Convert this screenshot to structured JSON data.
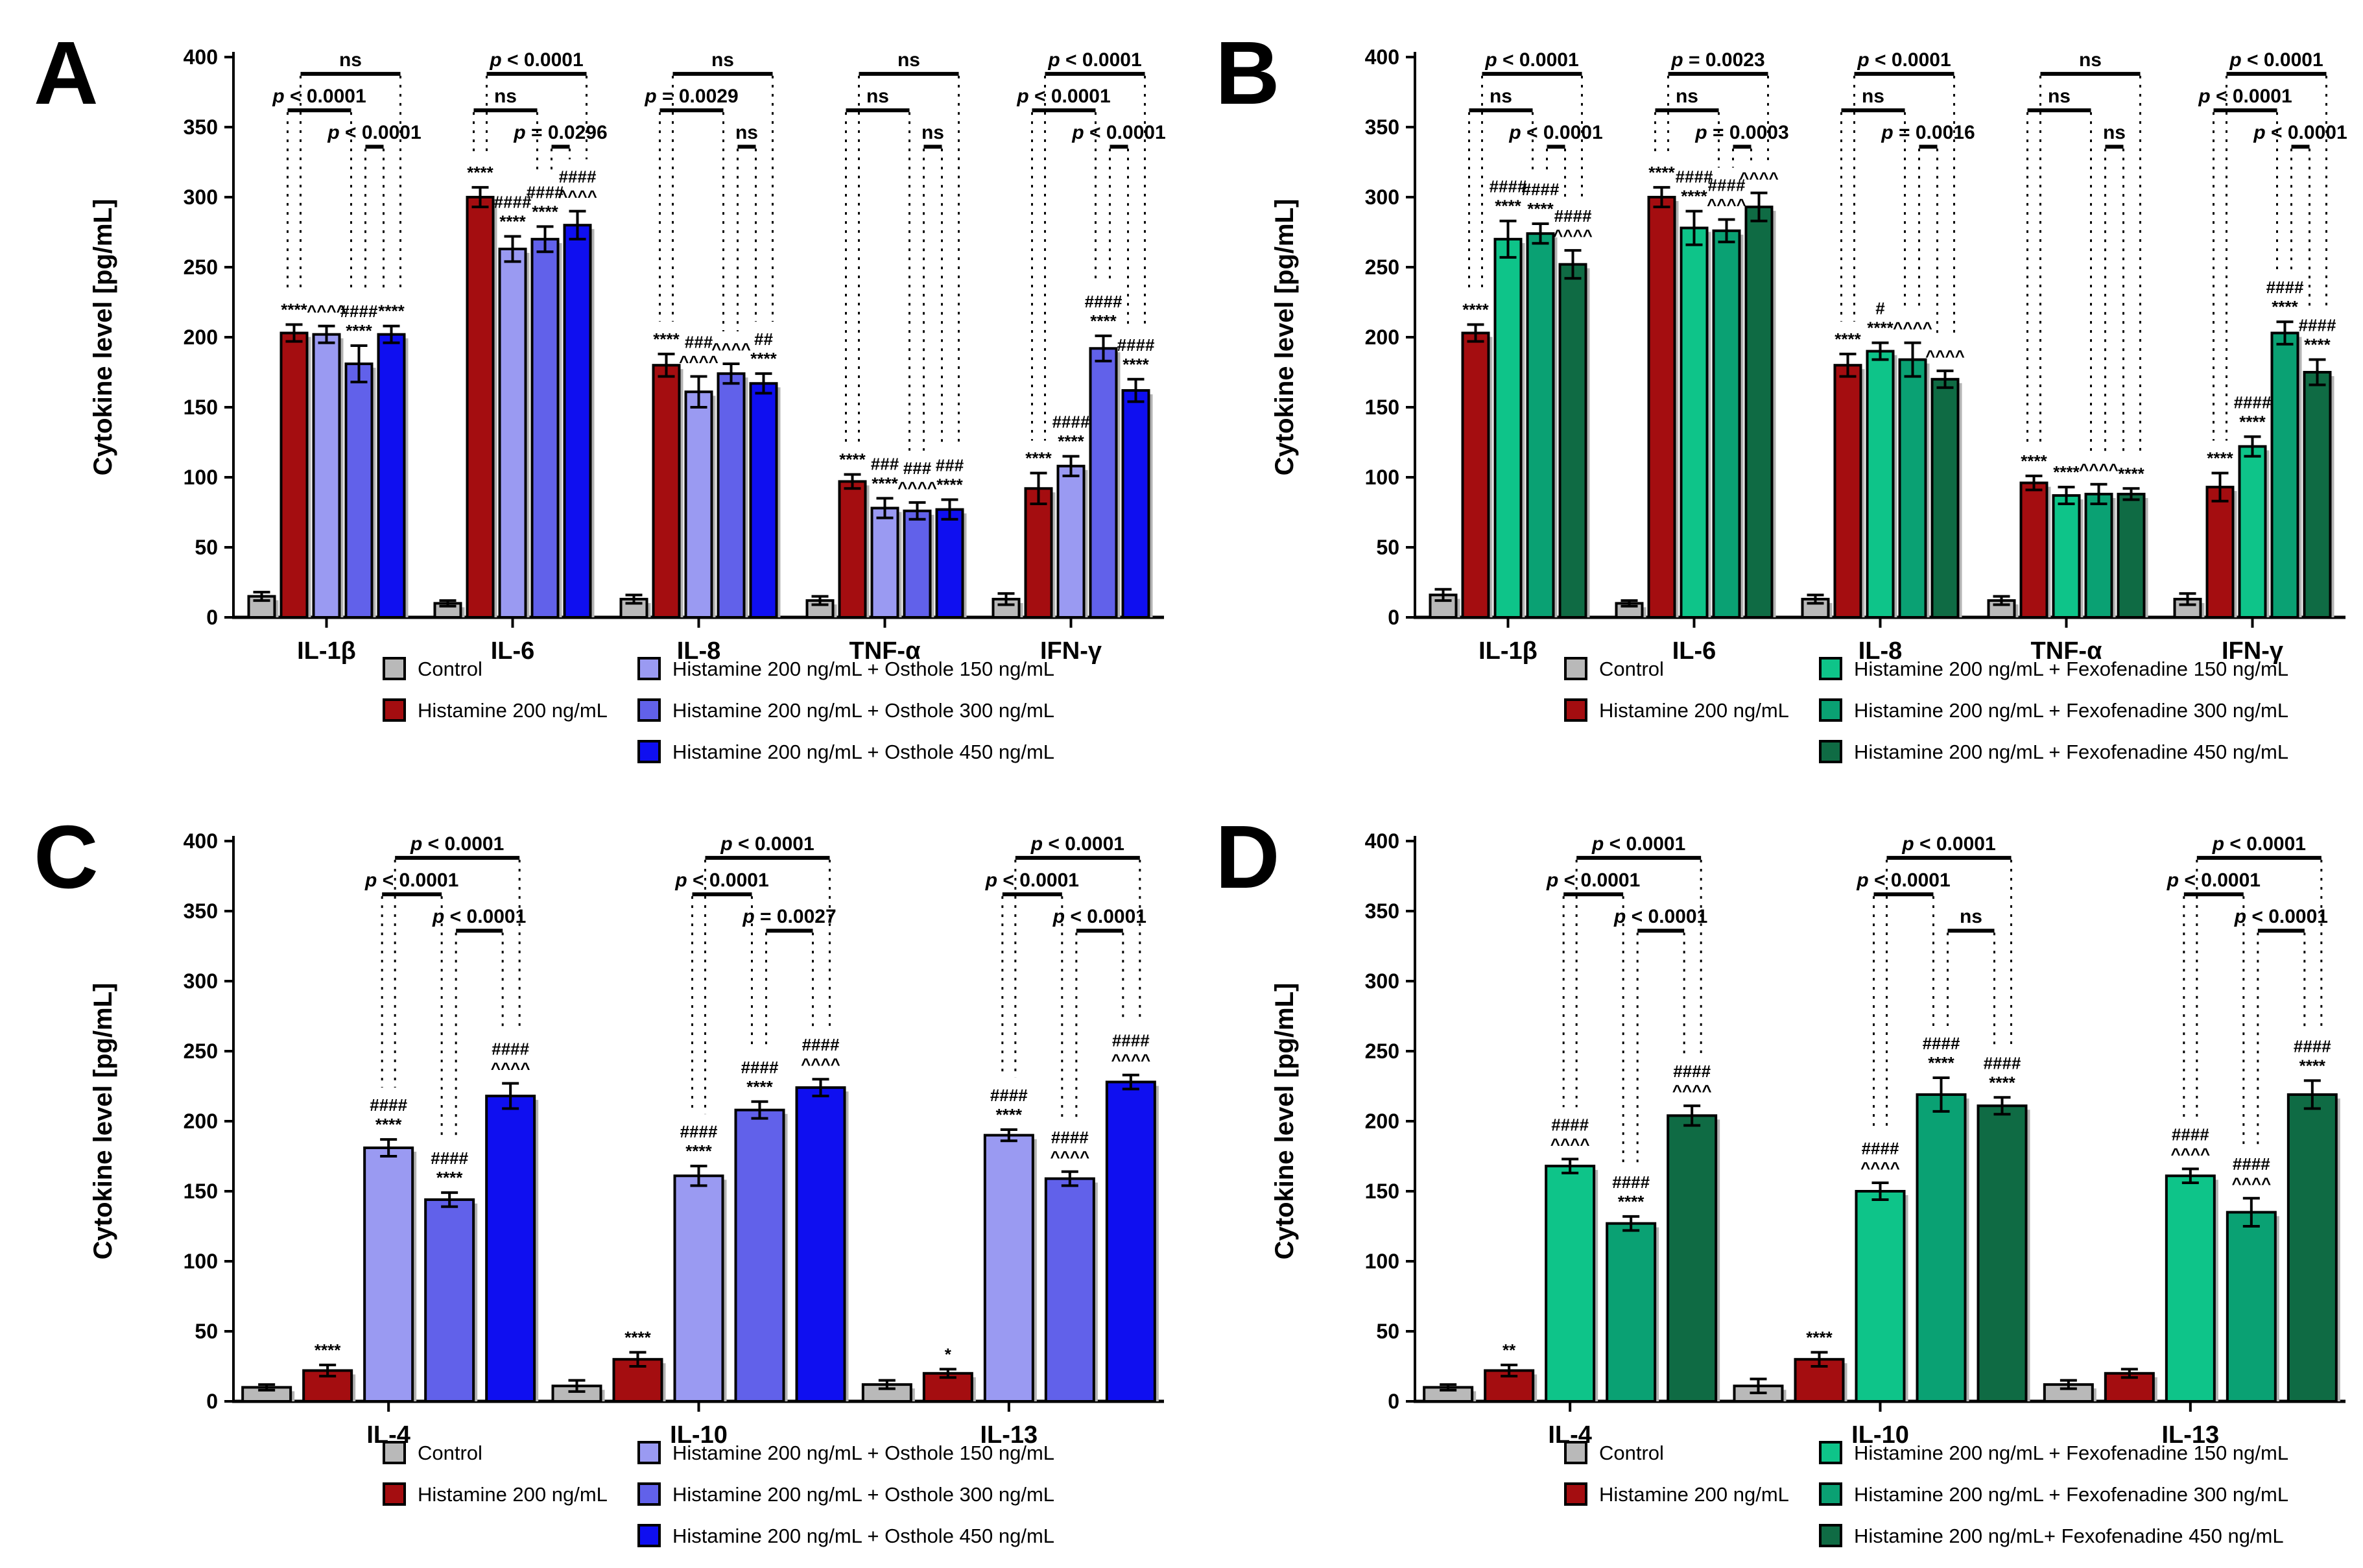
{
  "figure": {
    "description": "Four-panel bar figure of cytokine levels",
    "colors": {
      "control": "#b9b9b9",
      "histamine": "#a40d10",
      "osthole150": "#9a9af2",
      "osthole300": "#6161ea",
      "osthole450": "#0f0ff0",
      "fexofenadine150": "#0ec489",
      "fexofenadine300": "#0aa173",
      "fexofenadine450": "#0f6b44"
    }
  },
  "chart_data": [
    {
      "panel": "A",
      "type": "bar",
      "ylabel": "Cytokine level [pg/mL]",
      "ylim": [
        0,
        400
      ],
      "ytick_step": 50,
      "categories": [
        "IL-1β",
        "IL-6",
        "IL-8",
        "TNF-α",
        "IFN-γ"
      ],
      "series": [
        {
          "name": "Control",
          "color": "#b9b9b9",
          "values": [
            15,
            10,
            13,
            12,
            13
          ],
          "errors": [
            3,
            2,
            3,
            3,
            4
          ]
        },
        {
          "name": "Histamine 200 ng/mL",
          "color": "#a40d10",
          "values": [
            203,
            300,
            180,
            97,
            92
          ],
          "errors": [
            6,
            7,
            8,
            5,
            11
          ]
        },
        {
          "name": "Histamine 200 ng/mL + Osthole 150 ng/mL",
          "color": "#9a9af2",
          "values": [
            202,
            263,
            161,
            78,
            108
          ],
          "errors": [
            6,
            9,
            11,
            7,
            7
          ]
        },
        {
          "name": "Histamine 200 ng/mL + Osthole 300 ng/mL",
          "color": "#6161ea",
          "values": [
            181,
            270,
            174,
            76,
            192
          ],
          "errors": [
            13,
            9,
            7,
            6,
            9
          ]
        },
        {
          "name": "Histamine 200 ng/mL + Osthole 450 ng/mL",
          "color": "#0f0ff0",
          "values": [
            202,
            280,
            167,
            77,
            162
          ],
          "errors": [
            6,
            10,
            7,
            7,
            8
          ]
        }
      ],
      "annotations": [
        [
          "",
          "****",
          "^^^^",
          "####\n****",
          "****"
        ],
        [
          "",
          "****",
          "####\n****",
          "####\n****",
          "####\n^^^^"
        ],
        [
          "",
          "****",
          "###\n^^^^",
          "^^^^",
          "##\n****"
        ],
        [
          "",
          "****",
          "###\n****",
          "###\n^^^^",
          "###\n****"
        ],
        [
          "",
          "****",
          "####\n****",
          "####\n****",
          "####\n****"
        ]
      ],
      "comparisons": [
        {
          "category": "IL-1β",
          "brackets": [
            {
              "level": "top",
              "pair": [
                1,
                4
              ],
              "label": "ns"
            },
            {
              "level": "mid",
              "pair": [
                1,
                3
              ],
              "label": "p < 0.0001"
            },
            {
              "level": "low",
              "pair": [
                3,
                4
              ],
              "label": "p < 0.0001"
            }
          ]
        },
        {
          "category": "IL-6",
          "brackets": [
            {
              "level": "top",
              "pair": [
                1,
                4
              ],
              "label": "p < 0.0001"
            },
            {
              "level": "mid",
              "pair": [
                1,
                3
              ],
              "label": "ns"
            },
            {
              "level": "low",
              "pair": [
                3,
                4
              ],
              "label": "p = 0.0296"
            }
          ]
        },
        {
          "category": "IL-8",
          "brackets": [
            {
              "level": "top",
              "pair": [
                1,
                4
              ],
              "label": "ns"
            },
            {
              "level": "mid",
              "pair": [
                1,
                3
              ],
              "label": "p = 0.0029"
            },
            {
              "level": "low",
              "pair": [
                3,
                4
              ],
              "label": "ns"
            }
          ]
        },
        {
          "category": "TNF-α",
          "brackets": [
            {
              "level": "top",
              "pair": [
                1,
                4
              ],
              "label": "ns"
            },
            {
              "level": "mid",
              "pair": [
                1,
                3
              ],
              "label": "ns"
            },
            {
              "level": "low",
              "pair": [
                3,
                4
              ],
              "label": "ns"
            }
          ]
        },
        {
          "category": "IFN-γ",
          "brackets": [
            {
              "level": "top",
              "pair": [
                1,
                4
              ],
              "label": "p < 0.0001"
            },
            {
              "level": "mid",
              "pair": [
                1,
                3
              ],
              "label": "p < 0.0001"
            },
            {
              "level": "low",
              "pair": [
                3,
                4
              ],
              "label": "p < 0.0001"
            }
          ]
        }
      ],
      "legend": {
        "column1": [
          0,
          1
        ],
        "column2": [
          2,
          3,
          4
        ]
      }
    },
    {
      "panel": "B",
      "type": "bar",
      "ylabel": "Cytokine level [pg/mL]",
      "ylim": [
        0,
        400
      ],
      "ytick_step": 50,
      "categories": [
        "IL-1β",
        "IL-6",
        "IL-8",
        "TNF-α",
        "IFN-γ"
      ],
      "series": [
        {
          "name": "Control",
          "color": "#b9b9b9",
          "values": [
            16,
            10,
            13,
            12,
            13
          ],
          "errors": [
            4,
            2,
            3,
            3,
            4
          ]
        },
        {
          "name": "Histamine 200 ng/mL",
          "color": "#a40d10",
          "values": [
            203,
            300,
            180,
            96,
            93
          ],
          "errors": [
            6,
            7,
            8,
            5,
            10
          ]
        },
        {
          "name": "Histamine 200 ng/mL + Fexofenadine 150 ng/mL",
          "color": "#0ec489",
          "values": [
            270,
            278,
            190,
            87,
            122
          ],
          "errors": [
            13,
            12,
            6,
            6,
            7
          ]
        },
        {
          "name": "Histamine 200 ng/mL + Fexofenadine 300 ng/mL",
          "color": "#0aa173",
          "values": [
            274,
            276,
            184,
            88,
            203
          ],
          "errors": [
            7,
            8,
            12,
            7,
            8
          ]
        },
        {
          "name": "Histamine 200 ng/mL + Fexofenadine 450 ng/mL",
          "color": "#0f6b44",
          "values": [
            252,
            293,
            170,
            88,
            175
          ],
          "errors": [
            10,
            10,
            6,
            4,
            9
          ]
        }
      ],
      "annotations": [
        [
          "",
          "****",
          "####\n****",
          "####\n****",
          "####\n^^^^"
        ],
        [
          "",
          "****",
          "####\n****",
          "####\n^^^^",
          "^^^^"
        ],
        [
          "",
          "****",
          "#\n****",
          "^^^^",
          "^^^^"
        ],
        [
          "",
          "****",
          "****",
          "^^^^",
          "****"
        ],
        [
          "",
          "****",
          "####\n****",
          "####\n****",
          "####\n****"
        ]
      ],
      "comparisons": [
        {
          "category": "IL-1β",
          "brackets": [
            {
              "level": "top",
              "pair": [
                1,
                4
              ],
              "label": "p < 0.0001"
            },
            {
              "level": "mid",
              "pair": [
                1,
                3
              ],
              "label": "ns"
            },
            {
              "level": "low",
              "pair": [
                3,
                4
              ],
              "label": "p < 0.0001"
            }
          ]
        },
        {
          "category": "IL-6",
          "brackets": [
            {
              "level": "top",
              "pair": [
                1,
                4
              ],
              "label": "p = 0.0023"
            },
            {
              "level": "mid",
              "pair": [
                1,
                3
              ],
              "label": "ns"
            },
            {
              "level": "low",
              "pair": [
                3,
                4
              ],
              "label": "p = 0.0003"
            }
          ]
        },
        {
          "category": "IL-8",
          "brackets": [
            {
              "level": "top",
              "pair": [
                1,
                4
              ],
              "label": "p < 0.0001"
            },
            {
              "level": "mid",
              "pair": [
                1,
                3
              ],
              "label": "ns"
            },
            {
              "level": "low",
              "pair": [
                3,
                4
              ],
              "label": "p = 0.0016"
            }
          ]
        },
        {
          "category": "TNF-α",
          "brackets": [
            {
              "level": "top",
              "pair": [
                1,
                4
              ],
              "label": "ns"
            },
            {
              "level": "mid",
              "pair": [
                1,
                3
              ],
              "label": "ns"
            },
            {
              "level": "low",
              "pair": [
                3,
                4
              ],
              "label": "ns"
            }
          ]
        },
        {
          "category": "IFN-γ",
          "brackets": [
            {
              "level": "top",
              "pair": [
                1,
                4
              ],
              "label": "p < 0.0001"
            },
            {
              "level": "mid",
              "pair": [
                1,
                3
              ],
              "label": "p < 0.0001"
            },
            {
              "level": "low",
              "pair": [
                3,
                4
              ],
              "label": "p < 0.0001"
            }
          ]
        }
      ],
      "legend": {
        "column1": [
          0,
          1
        ],
        "column2": [
          2,
          3,
          4
        ]
      }
    },
    {
      "panel": "C",
      "type": "bar",
      "ylabel": "Cytokine level [pg/mL]",
      "ylim": [
        0,
        400
      ],
      "ytick_step": 50,
      "categories": [
        "IL-4",
        "IL-10",
        "IL-13"
      ],
      "series": [
        {
          "name": "Control",
          "color": "#b9b9b9",
          "values": [
            10,
            11,
            12
          ],
          "errors": [
            2,
            4,
            3
          ]
        },
        {
          "name": "Histamine 200 ng/mL",
          "color": "#a40d10",
          "values": [
            22,
            30,
            20
          ],
          "errors": [
            4,
            5,
            3
          ]
        },
        {
          "name": "Histamine 200 ng/mL + Osthole 150 ng/mL",
          "color": "#9a9af2",
          "values": [
            181,
            161,
            190
          ],
          "errors": [
            6,
            7,
            4
          ]
        },
        {
          "name": "Histamine 200 ng/mL + Osthole 300 ng/mL",
          "color": "#6161ea",
          "values": [
            144,
            208,
            159
          ],
          "errors": [
            5,
            6,
            5
          ]
        },
        {
          "name": "Histamine 200 ng/mL + Osthole 450 ng/mL",
          "color": "#0f0ff0",
          "values": [
            218,
            224,
            228
          ],
          "errors": [
            9,
            6,
            5
          ]
        }
      ],
      "annotations": [
        [
          "",
          "****",
          "####\n****",
          "####\n****",
          "####\n^^^^"
        ],
        [
          "",
          "****",
          "####\n****",
          "####\n****",
          "####\n^^^^"
        ],
        [
          "",
          "*",
          "####\n****",
          "####\n^^^^",
          "####\n^^^^"
        ]
      ],
      "comparisons": [
        {
          "category": "IL-4",
          "brackets": [
            {
              "level": "top",
              "pair": [
                2,
                4
              ],
              "label": "p < 0.0001"
            },
            {
              "level": "mid",
              "pair": [
                2,
                3
              ],
              "label": "p < 0.0001"
            },
            {
              "level": "low",
              "pair": [
                3,
                4
              ],
              "label": "p < 0.0001"
            }
          ]
        },
        {
          "category": "IL-10",
          "brackets": [
            {
              "level": "top",
              "pair": [
                2,
                4
              ],
              "label": "p < 0.0001"
            },
            {
              "level": "mid",
              "pair": [
                2,
                3
              ],
              "label": "p < 0.0001"
            },
            {
              "level": "low",
              "pair": [
                3,
                4
              ],
              "label": "p = 0.0027"
            }
          ]
        },
        {
          "category": "IL-13",
          "brackets": [
            {
              "level": "top",
              "pair": [
                2,
                4
              ],
              "label": "p < 0.0001"
            },
            {
              "level": "mid",
              "pair": [
                2,
                3
              ],
              "label": "p < 0.0001"
            },
            {
              "level": "low",
              "pair": [
                3,
                4
              ],
              "label": "p < 0.0001"
            }
          ]
        }
      ],
      "legend": {
        "column1": [
          0,
          1
        ],
        "column2": [
          2,
          3,
          4
        ]
      }
    },
    {
      "panel": "D",
      "type": "bar",
      "ylabel": "Cytokine level [pg/mL]",
      "ylim": [
        0,
        400
      ],
      "ytick_step": 50,
      "categories": [
        "IL-4",
        "IL-10",
        "IL-13"
      ],
      "series": [
        {
          "name": "Control",
          "color": "#b9b9b9",
          "values": [
            10,
            11,
            12
          ],
          "errors": [
            2,
            5,
            3
          ]
        },
        {
          "name": "Histamine 200 ng/mL",
          "color": "#a40d10",
          "values": [
            22,
            30,
            20
          ],
          "errors": [
            4,
            5,
            3
          ]
        },
        {
          "name": "Histamine 200 ng/mL + Fexofenadine 150 ng/mL",
          "color": "#0ec489",
          "values": [
            168,
            150,
            161
          ],
          "errors": [
            5,
            6,
            5
          ]
        },
        {
          "name": "Histamine 200 ng/mL + Fexofenadine 300 ng/mL",
          "color": "#0aa173",
          "values": [
            127,
            219,
            135
          ],
          "errors": [
            5,
            12,
            10
          ]
        },
        {
          "name": "Histamine 200 ng/mL+ Fexofenadine 450 ng/mL",
          "color": "#0f6b44",
          "values": [
            204,
            211,
            219
          ],
          "errors": [
            7,
            6,
            10
          ]
        }
      ],
      "annotations": [
        [
          "",
          "**",
          "####\n^^^^",
          "####\n****",
          "####\n^^^^"
        ],
        [
          "",
          "****",
          "####\n^^^^",
          "####\n****",
          "####\n****"
        ],
        [
          "",
          "",
          "####\n^^^^",
          "####\n^^^^",
          "####\n****"
        ]
      ],
      "comparisons": [
        {
          "category": "IL-4",
          "brackets": [
            {
              "level": "top",
              "pair": [
                2,
                4
              ],
              "label": "p < 0.0001"
            },
            {
              "level": "mid",
              "pair": [
                2,
                3
              ],
              "label": "p < 0.0001"
            },
            {
              "level": "low",
              "pair": [
                3,
                4
              ],
              "label": "p < 0.0001"
            }
          ]
        },
        {
          "category": "IL-10",
          "brackets": [
            {
              "level": "top",
              "pair": [
                2,
                4
              ],
              "label": "p < 0.0001"
            },
            {
              "level": "mid",
              "pair": [
                2,
                3
              ],
              "label": "p < 0.0001"
            },
            {
              "level": "low",
              "pair": [
                3,
                4
              ],
              "label": "ns"
            }
          ]
        },
        {
          "category": "IL-13",
          "brackets": [
            {
              "level": "top",
              "pair": [
                2,
                4
              ],
              "label": "p < 0.0001"
            },
            {
              "level": "mid",
              "pair": [
                2,
                3
              ],
              "label": "p < 0.0001"
            },
            {
              "level": "low",
              "pair": [
                3,
                4
              ],
              "label": "p < 0.0001"
            }
          ]
        }
      ],
      "legend": {
        "column1": [
          0,
          1
        ],
        "column2": [
          2,
          3,
          4
        ]
      }
    }
  ]
}
